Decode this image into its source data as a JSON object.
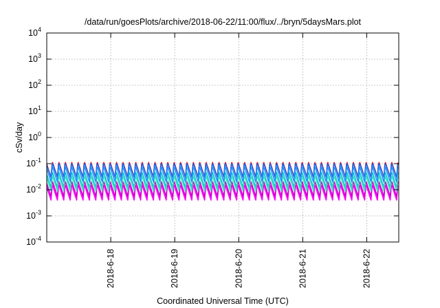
{
  "chart_data": {
    "type": "line",
    "title": "/data/run/goesPlots/archive/2018-06-22/11:00/flux/../bryn/5daysMars.plot",
    "xlabel": "Coordinated Universal Time (UTC)",
    "ylabel": "cSv/day",
    "y_scale": "log",
    "ylim": [
      0.0001,
      10000
    ],
    "y_ticks": [
      {
        "base": "10",
        "exp": "-4",
        "value": 0.0001
      },
      {
        "base": "10",
        "exp": "-3",
        "value": 0.001
      },
      {
        "base": "10",
        "exp": "-2",
        "value": 0.01
      },
      {
        "base": "10",
        "exp": "-1",
        "value": 0.1
      },
      {
        "base": "10",
        "exp": "0",
        "value": 1
      },
      {
        "base": "10",
        "exp": "1",
        "value": 10
      },
      {
        "base": "10",
        "exp": "2",
        "value": 100
      },
      {
        "base": "10",
        "exp": "3",
        "value": 1000
      },
      {
        "base": "10",
        "exp": "4",
        "value": 10000
      }
    ],
    "xlim": [
      "2018-06-17 00:00",
      "2018-06-22 12:00"
    ],
    "x_ticks": [
      "2018-6-18",
      "2018-6-19",
      "2018-6-20",
      "2018-6-21",
      "2018-6-22"
    ],
    "x_tick_dates": [
      "2018-06-18",
      "2018-06-19",
      "2018-06-20",
      "2018-06-21",
      "2018-06-22"
    ],
    "grid": true,
    "cycle_hours": 2.4,
    "series": [
      {
        "color": "#ff00ff",
        "peak": 0.016,
        "trough": 0.004
      },
      {
        "color": "#cc00cc",
        "peak": 0.022,
        "trough": 0.0055
      },
      {
        "color": "#ff0000",
        "peak": 0.12,
        "trough": 0.03
      },
      {
        "color": "#00c8c8",
        "peak": 0.05,
        "trough": 0.012
      },
      {
        "color": "#40e0c0",
        "peak": 0.035,
        "trough": 0.009
      },
      {
        "color": "#2060e0",
        "peak": 0.11,
        "trough": 0.03
      },
      {
        "color": "#1e90ff",
        "peak": 0.08,
        "trough": 0.02
      }
    ]
  }
}
